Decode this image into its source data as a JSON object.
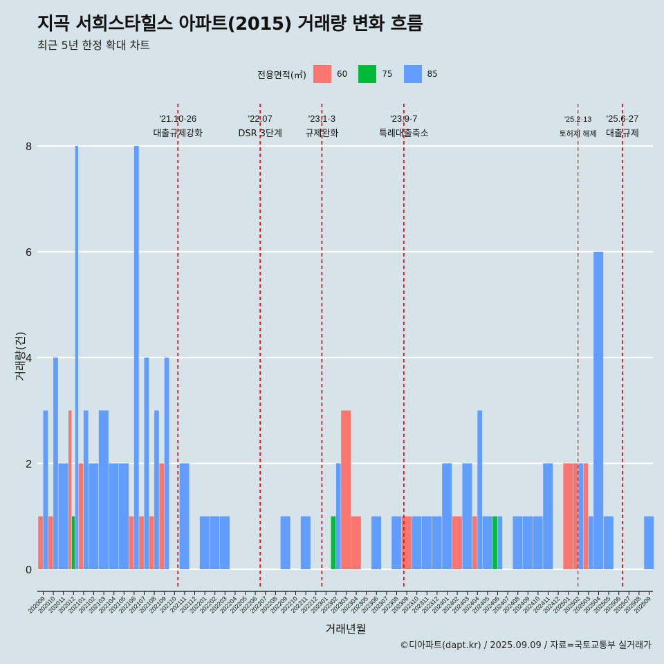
{
  "header": {
    "title": "지곡 서희스타힐스 아파트(2015) 거래량 변화 흐름",
    "subtitle": "최근 5년 한정 확대 차트"
  },
  "legend": {
    "title": "전용면적(㎡)",
    "items": [
      {
        "label": "60",
        "color": "#F8766D"
      },
      {
        "label": "75",
        "color": "#00BA38"
      },
      {
        "label": "85",
        "color": "#619CFF"
      }
    ]
  },
  "caption": "©디아파트(dapt.kr) / 2025.09.09 / 자료=국토교통부 실거래가",
  "chart_data": {
    "type": "bar",
    "stacking": "dodge",
    "xlabel": "거래년월",
    "ylabel": "거래량(건)",
    "ylim": [
      0,
      8
    ],
    "yticks": [
      0,
      2,
      4,
      6,
      8
    ],
    "grid": "horizontal major lines",
    "legend_position": "top",
    "categories": [
      "202009",
      "202010",
      "202011",
      "202012",
      "202101",
      "202102",
      "202103",
      "202104",
      "202105",
      "202106",
      "202107",
      "202108",
      "202109",
      "202110",
      "202111",
      "202112",
      "202201",
      "202202",
      "202203",
      "202204",
      "202205",
      "202206",
      "202207",
      "202208",
      "202209",
      "202210",
      "202211",
      "202212",
      "202301",
      "202302",
      "202303",
      "202304",
      "202305",
      "202306",
      "202307",
      "202308",
      "202309",
      "202310",
      "202311",
      "202312",
      "202401",
      "202402",
      "202403",
      "202404",
      "202405",
      "202406",
      "202407",
      "202408",
      "202409",
      "202410",
      "202411",
      "202412",
      "202501",
      "202502",
      "202503",
      "202504",
      "202505",
      "202506",
      "202507",
      "202508",
      "202509"
    ],
    "bars": [
      {
        "month": "202009",
        "area": "60",
        "value": 1
      },
      {
        "month": "202009",
        "area": "85",
        "value": 3
      },
      {
        "month": "202010",
        "area": "60",
        "value": 1
      },
      {
        "month": "202010",
        "area": "85",
        "value": 4
      },
      {
        "month": "202011",
        "area": "85",
        "value": 2
      },
      {
        "month": "202012",
        "area": "60",
        "value": 3
      },
      {
        "month": "202012",
        "area": "75",
        "value": 1
      },
      {
        "month": "202012",
        "area": "85",
        "value": 8
      },
      {
        "month": "202101",
        "area": "60",
        "value": 2
      },
      {
        "month": "202101",
        "area": "85",
        "value": 3
      },
      {
        "month": "202102",
        "area": "85",
        "value": 2
      },
      {
        "month": "202103",
        "area": "85",
        "value": 3
      },
      {
        "month": "202104",
        "area": "85",
        "value": 2
      },
      {
        "month": "202105",
        "area": "85",
        "value": 2
      },
      {
        "month": "202106",
        "area": "60",
        "value": 1
      },
      {
        "month": "202106",
        "area": "85",
        "value": 8
      },
      {
        "month": "202107",
        "area": "60",
        "value": 1
      },
      {
        "month": "202107",
        "area": "85",
        "value": 4
      },
      {
        "month": "202108",
        "area": "60",
        "value": 1
      },
      {
        "month": "202108",
        "area": "85",
        "value": 3
      },
      {
        "month": "202109",
        "area": "60",
        "value": 2
      },
      {
        "month": "202109",
        "area": "85",
        "value": 4
      },
      {
        "month": "202111",
        "area": "85",
        "value": 2
      },
      {
        "month": "202201",
        "area": "85",
        "value": 1
      },
      {
        "month": "202202",
        "area": "85",
        "value": 1
      },
      {
        "month": "202203",
        "area": "85",
        "value": 1
      },
      {
        "month": "202209",
        "area": "85",
        "value": 1
      },
      {
        "month": "202211",
        "area": "85",
        "value": 1
      },
      {
        "month": "202302",
        "area": "75",
        "value": 1
      },
      {
        "month": "202302",
        "area": "85",
        "value": 2
      },
      {
        "month": "202303",
        "area": "60",
        "value": 3
      },
      {
        "month": "202304",
        "area": "60",
        "value": 1
      },
      {
        "month": "202306",
        "area": "85",
        "value": 1
      },
      {
        "month": "202308",
        "area": "85",
        "value": 1
      },
      {
        "month": "202309",
        "area": "60",
        "value": 1
      },
      {
        "month": "202310",
        "area": "85",
        "value": 1
      },
      {
        "month": "202311",
        "area": "85",
        "value": 1
      },
      {
        "month": "202312",
        "area": "85",
        "value": 1
      },
      {
        "month": "202401",
        "area": "85",
        "value": 2
      },
      {
        "month": "202402",
        "area": "60",
        "value": 1
      },
      {
        "month": "202403",
        "area": "85",
        "value": 2
      },
      {
        "month": "202404",
        "area": "60",
        "value": 1
      },
      {
        "month": "202404",
        "area": "85",
        "value": 3
      },
      {
        "month": "202405",
        "area": "85",
        "value": 1
      },
      {
        "month": "202406",
        "area": "75",
        "value": 1
      },
      {
        "month": "202406",
        "area": "85",
        "value": 1
      },
      {
        "month": "202408",
        "area": "85",
        "value": 1
      },
      {
        "month": "202409",
        "area": "85",
        "value": 1
      },
      {
        "month": "202410",
        "area": "85",
        "value": 1
      },
      {
        "month": "202411",
        "area": "85",
        "value": 2
      },
      {
        "month": "202501",
        "area": "60",
        "value": 2
      },
      {
        "month": "202502",
        "area": "60",
        "value": 2
      },
      {
        "month": "202502",
        "area": "85",
        "value": 2
      },
      {
        "month": "202503",
        "area": "60",
        "value": 2
      },
      {
        "month": "202503",
        "area": "85",
        "value": 1
      },
      {
        "month": "202504",
        "area": "85",
        "value": 6
      },
      {
        "month": "202505",
        "area": "85",
        "value": 1
      },
      {
        "month": "202509",
        "area": "85",
        "value": 1
      }
    ],
    "events": [
      {
        "date": "2021-10-26",
        "line1": "'21.10·26",
        "line2": "대출규제강화"
      },
      {
        "date": "2022-07-01",
        "line1": "'22.07",
        "line2": "DSR 3단계"
      },
      {
        "date": "2023-01-03",
        "line1": "'23.1·3",
        "line2": "규제완화"
      },
      {
        "date": "2023-09-07",
        "line1": "'23.9·7",
        "line2": "특례대출축소"
      },
      {
        "date": "2025-02-13",
        "line1": "'25.2·13",
        "line2": "토허제 해제"
      },
      {
        "date": "2025-06-27",
        "line1": "'25.6·27",
        "line2": "대출규제"
      }
    ]
  }
}
